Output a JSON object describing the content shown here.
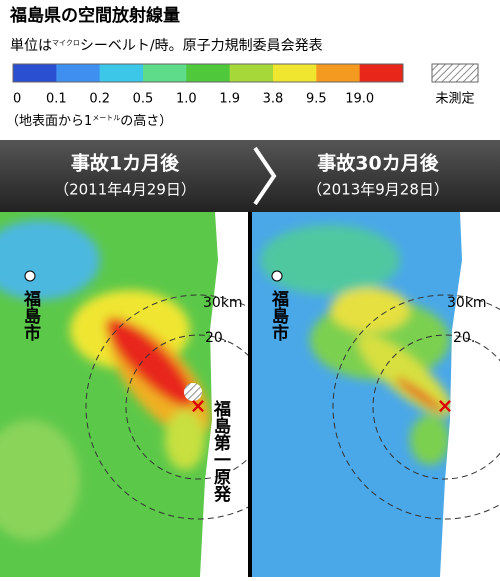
{
  "title": "福島県の空間放射線量",
  "subtitle": {
    "prefix": "単位は",
    "ruby": "マイクロ",
    "suffix": "シーベルト/時。原子力規制委員会発表"
  },
  "legend": {
    "colors": [
      "#2a4fd0",
      "#3f8ff0",
      "#3cc6e8",
      "#5fdc8a",
      "#4fc83c",
      "#a6d83a",
      "#f0e630",
      "#f59a20",
      "#e8261a"
    ],
    "ticks": [
      0,
      0.1,
      0.2,
      0.5,
      {
        "value": 1,
        "label": "1.0"
      },
      1.9,
      3.8,
      9.5,
      {
        "value": 19,
        "label": "19.0"
      }
    ],
    "unmeasured": "未測定",
    "note": {
      "prefix": "（地表面から1",
      "ruby": "メートル",
      "suffix": "の高さ）"
    }
  },
  "panels": [
    {
      "heading": "事故1カ月後",
      "date": "（2011年4月29日）"
    },
    {
      "heading": "事故30カ月後",
      "date": "（2013年9月28日）"
    }
  ],
  "map_labels": {
    "city": "福島市",
    "r30": "30km",
    "r20": "20.",
    "plant": "福島第一原発"
  }
}
